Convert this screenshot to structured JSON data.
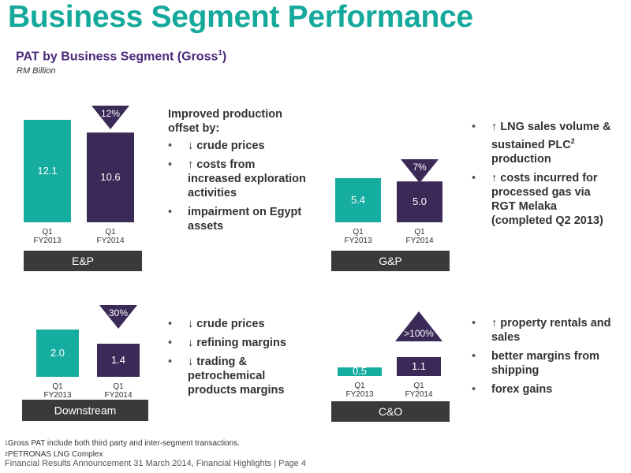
{
  "title": "Business Segment Performance",
  "subtitle": {
    "text": "PAT by Business Segment (Gross",
    "ref": "1",
    "close": ")"
  },
  "unit": "RM Billion",
  "colors": {
    "teal": "#16ada1",
    "purple": "#3b2a57",
    "label_bar": "#3a3a3a",
    "title": "#14a99b",
    "subtitle": "#4a2a7a"
  },
  "chart_data": [
    {
      "type": "bar",
      "segment": "E&P",
      "categories": [
        "Q1\nFY2013",
        "Q1\nFY2014"
      ],
      "values": [
        12.1,
        10.6
      ],
      "value_labels": [
        "12.1",
        "10.6"
      ],
      "colors": [
        "#16ada1",
        "#3b2a57"
      ],
      "change": "12%",
      "change_direction": "down",
      "ylim": [
        0,
        12.1
      ]
    },
    {
      "type": "bar",
      "segment": "G&P",
      "categories": [
        "Q1\nFY2013",
        "Q1\nFY2014"
      ],
      "values": [
        5.4,
        5.0
      ],
      "value_labels": [
        "5.4",
        "5.0"
      ],
      "colors": [
        "#16ada1",
        "#3b2a57"
      ],
      "change": "7%",
      "change_direction": "down",
      "ylim": [
        0,
        5.4
      ]
    },
    {
      "type": "bar",
      "segment": "Downstream",
      "categories": [
        "Q1\nFY2013",
        "Q1\nFY2014"
      ],
      "values": [
        2.0,
        1.4
      ],
      "value_labels": [
        "2.0",
        "1.4"
      ],
      "colors": [
        "#16ada1",
        "#3b2a57"
      ],
      "change": "30%",
      "change_direction": "down",
      "ylim": [
        0,
        2.0
      ]
    },
    {
      "type": "bar",
      "segment": "C&O",
      "categories": [
        "Q1\nFY2013",
        "Q1\nFY2014"
      ],
      "values": [
        0.5,
        1.1
      ],
      "value_labels": [
        "0.5",
        "1.1"
      ],
      "colors": [
        "#16ada1",
        "#3b2a57"
      ],
      "change": ">100%",
      "change_direction": "up",
      "ylim": [
        0,
        1.1
      ]
    }
  ],
  "texts": {
    "ep": {
      "intro": "Improved production offset by:",
      "items": [
        {
          "bullet": "•",
          "arrow": "↓",
          "text": "crude prices"
        },
        {
          "bullet": "•",
          "arrow": "↑",
          "text": "costs from increased exploration activities"
        },
        {
          "bullet": "•",
          "arrow": "",
          "text": "impairment on Egypt assets"
        }
      ]
    },
    "gp": {
      "items": [
        {
          "bullet": "•",
          "arrow": "↑",
          "text": "LNG sales volume & sustained PLC",
          "ref": "2",
          "text2": " production"
        },
        {
          "bullet": "•",
          "arrow": "↑",
          "text": "costs incurred for processed gas via RGT Melaka (completed Q2 2013)"
        }
      ]
    },
    "ds": {
      "items": [
        {
          "bullet": "•",
          "arrow": "↓",
          "text": "crude prices"
        },
        {
          "bullet": "•",
          "arrow": "↓",
          "text": "refining margins"
        },
        {
          "bullet": "•",
          "arrow": "↓",
          "text": "trading & petrochemical products margins"
        }
      ]
    },
    "co": {
      "items": [
        {
          "bullet": "•",
          "arrow": "↑",
          "text": "property rentals and sales"
        },
        {
          "bullet": "•",
          "arrow": "",
          "text": "better margins from shipping"
        },
        {
          "bullet": "•",
          "arrow": "",
          "text": "forex gains"
        }
      ]
    }
  },
  "footnotes": [
    {
      "ref": "1",
      "text": "Gross PAT include both third party and inter-segment transactions."
    },
    {
      "ref": "2",
      "text": "PETRONAS LNG Complex"
    }
  ],
  "footer": "Financial Results Announcement 31 March 2014, Financial Highlights | Page 4"
}
